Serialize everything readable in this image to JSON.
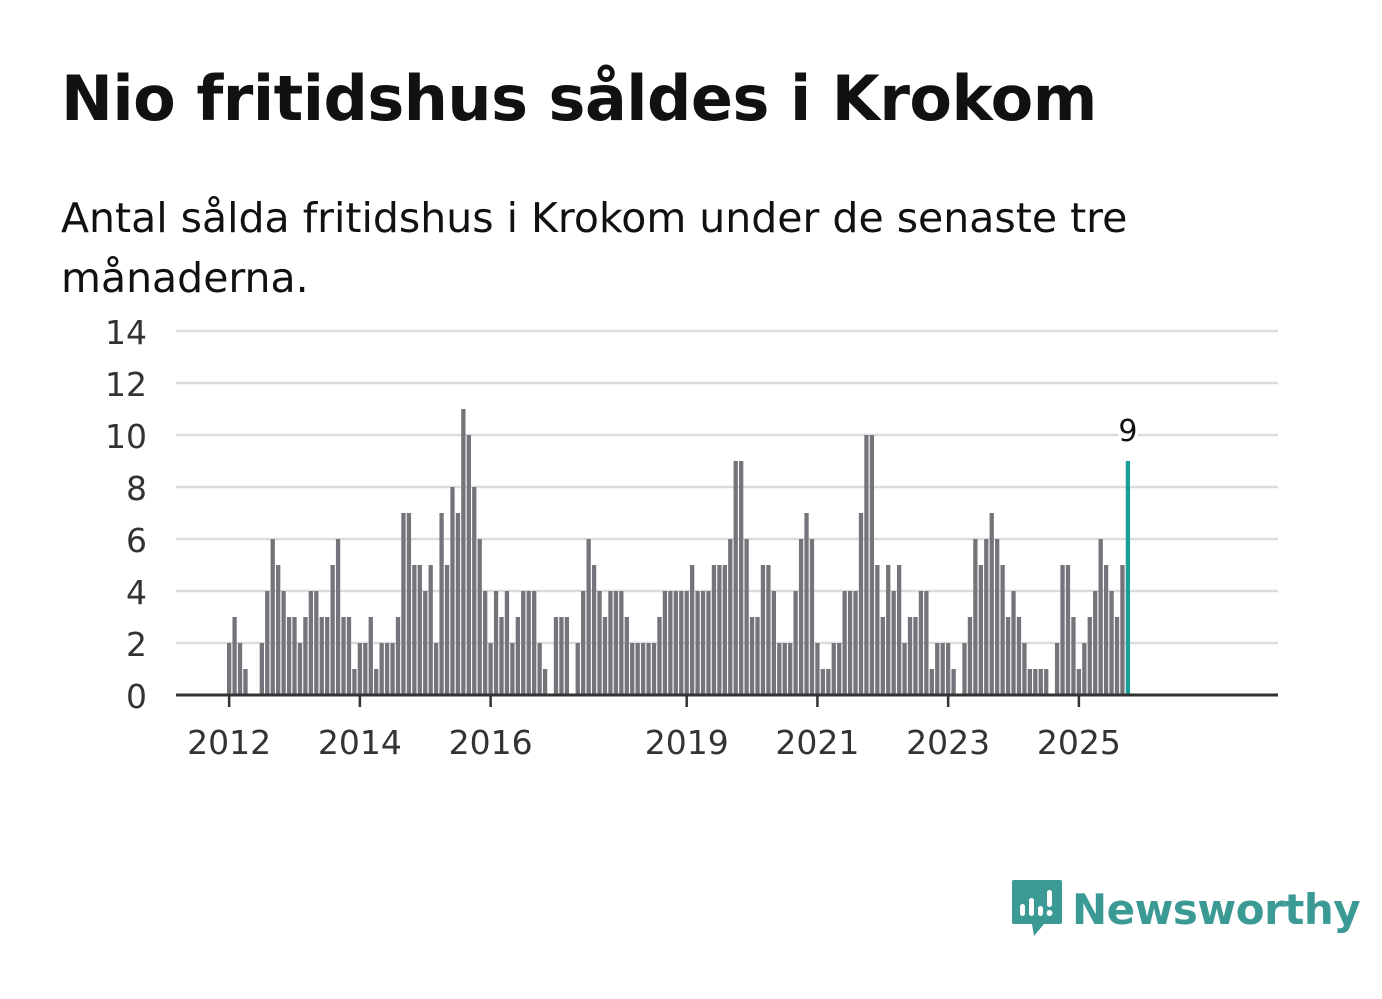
{
  "header": {
    "title": "Nio fritidshus såldes i Krokom",
    "subtitle": "Antal sålda fritidshus i Krokom under de senaste tre månaderna."
  },
  "brand": {
    "name": "Newsworthy",
    "icon": "newsworthy-logo-icon",
    "color": "#3b9a94"
  },
  "chart_data": {
    "type": "bar",
    "title": "Nio fritidshus såldes i Krokom",
    "subtitle": "Antal sålda fritidshus i Krokom under de senaste tre månaderna.",
    "xlabel": "",
    "ylabel": "",
    "ylim": [
      0,
      14
    ],
    "yticks": [
      0,
      2,
      4,
      6,
      8,
      10,
      12,
      14
    ],
    "xtick_labels": [
      "2012",
      "2014",
      "2016",
      "2019",
      "2021",
      "2023",
      "2025"
    ],
    "grid": true,
    "bar_color": "#76747a",
    "highlight_color": "#1a9e9a",
    "highlight_label": "9",
    "series": [
      {
        "values": [
          2,
          3,
          2,
          1,
          0,
          0,
          2,
          4,
          6,
          5,
          4,
          3,
          3,
          2,
          3,
          4,
          4,
          3,
          3,
          5,
          6,
          3,
          3,
          1,
          2,
          2,
          3,
          1,
          2,
          2,
          2,
          3,
          7,
          7,
          5,
          5,
          4,
          5,
          2,
          7,
          5,
          8,
          7,
          11,
          10,
          8,
          6,
          4,
          2,
          4,
          3,
          4,
          2,
          3,
          4,
          4,
          4,
          2,
          1,
          0,
          3,
          3,
          3,
          0,
          2,
          4,
          6,
          5,
          4,
          3,
          4,
          4,
          4,
          3,
          2,
          2,
          2,
          2,
          2,
          3,
          4,
          4,
          4,
          4,
          4,
          5,
          4,
          4,
          4,
          5,
          5,
          5,
          6,
          9,
          9,
          6,
          3,
          3,
          5,
          5,
          4,
          2,
          2,
          2,
          4,
          6,
          7,
          6,
          2,
          1,
          1,
          2,
          2,
          4,
          4,
          4,
          7,
          10,
          10,
          5,
          3,
          5,
          4,
          5,
          2,
          3,
          3,
          4,
          4,
          1,
          2,
          2,
          2,
          1,
          0,
          2,
          3,
          6,
          5,
          6,
          7,
          6,
          5,
          3,
          4,
          3,
          2,
          1,
          1,
          1,
          1,
          0,
          2,
          5,
          5,
          3,
          1,
          2,
          3,
          4,
          6,
          5,
          4,
          3,
          5,
          9
        ]
      }
    ]
  }
}
